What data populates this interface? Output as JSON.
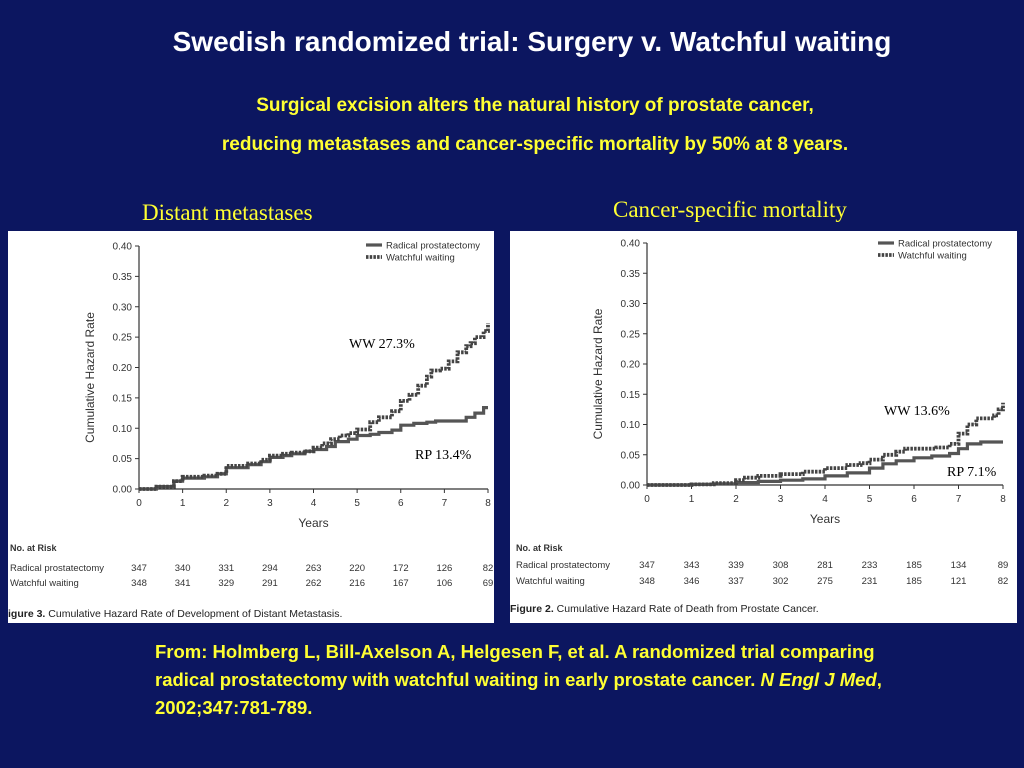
{
  "slide": {
    "title": "Swedish randomized trial: Surgery v. Watchful waiting",
    "subtitle_line1": "Surgical excision alters the natural history of prostate cancer,",
    "subtitle_line2": "reducing metastases and cancer-specific mortality by 50% at 8 years.",
    "citation_part1": "From:  Holmberg L, Bill-Axelson A, Helgesen F, et al. A randomized trial comparing radical prostatectomy with watchful waiting in early prostate cancer. ",
    "citation_journal": "N Engl J Med",
    "citation_part2": ", 2002;347:781-789."
  },
  "colors": {
    "background": "#0c1660",
    "title": "#ffffff",
    "highlight": "#ffff33",
    "line_rp": "#555555",
    "line_ww": "#444444"
  },
  "chart_data": [
    {
      "type": "line",
      "panel_label": "Distant metastases",
      "ylabel": "Cumulative Hazard Rate",
      "xlabel": "Years",
      "xlim": [
        0,
        8
      ],
      "ylim": [
        0,
        0.4
      ],
      "x_ticks": [
        "0",
        "1",
        "2",
        "3",
        "4",
        "5",
        "6",
        "7",
        "8"
      ],
      "y_ticks": [
        "0.00",
        "0.05",
        "0.10",
        "0.15",
        "0.20",
        "0.25",
        "0.30",
        "0.35",
        "0.40"
      ],
      "legend_position": "top-right",
      "series": [
        {
          "name": "Radical prostatectomy",
          "x": [
            0,
            0.4,
            0.8,
            1.0,
            1.5,
            1.8,
            2.0,
            2.5,
            2.8,
            3.0,
            3.3,
            3.5,
            3.8,
            4.0,
            4.3,
            4.5,
            4.8,
            5.0,
            5.3,
            5.5,
            5.8,
            6.0,
            6.3,
            6.6,
            6.8,
            7.2,
            7.5,
            7.7,
            7.9,
            8.0
          ],
          "y": [
            0,
            0.004,
            0.013,
            0.018,
            0.02,
            0.025,
            0.035,
            0.04,
            0.045,
            0.052,
            0.055,
            0.058,
            0.062,
            0.065,
            0.07,
            0.078,
            0.082,
            0.088,
            0.09,
            0.093,
            0.097,
            0.105,
            0.108,
            0.11,
            0.112,
            0.112,
            0.118,
            0.125,
            0.134,
            0.134
          ]
        },
        {
          "name": "Watchful waiting",
          "x": [
            0,
            0.4,
            0.8,
            1.0,
            1.5,
            1.8,
            2.0,
            2.5,
            2.8,
            3.0,
            3.3,
            3.5,
            3.8,
            4.0,
            4.2,
            4.4,
            4.6,
            4.8,
            5.0,
            5.3,
            5.5,
            5.8,
            6.0,
            6.2,
            6.4,
            6.6,
            6.7,
            6.9,
            7.1,
            7.3,
            7.5,
            7.6,
            7.7,
            7.9,
            8.0
          ],
          "y": [
            0,
            0.004,
            0.013,
            0.02,
            0.022,
            0.025,
            0.038,
            0.042,
            0.048,
            0.055,
            0.058,
            0.06,
            0.062,
            0.068,
            0.075,
            0.082,
            0.088,
            0.092,
            0.098,
            0.11,
            0.118,
            0.128,
            0.145,
            0.155,
            0.17,
            0.185,
            0.195,
            0.198,
            0.21,
            0.225,
            0.235,
            0.24,
            0.25,
            0.26,
            0.273
          ]
        }
      ],
      "annotations": [
        {
          "text": "WW 27.3%"
        },
        {
          "text": "RP 13.4%"
        }
      ],
      "at_risk": {
        "header": "No. at Risk",
        "rows": [
          {
            "label": "Radical prostatectomy",
            "values": [
              "347",
              "340",
              "331",
              "294",
              "263",
              "220",
              "172",
              "126",
              "82"
            ]
          },
          {
            "label": "Watchful waiting",
            "values": [
              "348",
              "341",
              "329",
              "291",
              "262",
              "216",
              "167",
              "106",
              "69"
            ]
          }
        ]
      },
      "caption_bold": "igure 3.",
      "caption_text": " Cumulative Hazard Rate of Development of Distant Metastasis."
    },
    {
      "type": "line",
      "panel_label": "Cancer-specific mortality",
      "ylabel": "Cumulative Hazard Rate",
      "xlabel": "Years",
      "xlim": [
        0,
        8
      ],
      "ylim": [
        0,
        0.4
      ],
      "x_ticks": [
        "0",
        "1",
        "2",
        "3",
        "4",
        "5",
        "6",
        "7",
        "8"
      ],
      "y_ticks": [
        "0.00",
        "0.05",
        "0.10",
        "0.15",
        "0.20",
        "0.25",
        "0.30",
        "0.35",
        "0.40"
      ],
      "legend_position": "top-right",
      "series": [
        {
          "name": "Radical prostatectomy",
          "x": [
            0,
            1.0,
            1.5,
            2.0,
            2.5,
            3.0,
            3.5,
            4.0,
            4.5,
            5.0,
            5.3,
            5.6,
            6.0,
            6.4,
            6.8,
            7.0,
            7.2,
            7.5,
            8.0
          ],
          "y": [
            0,
            0.001,
            0.002,
            0.004,
            0.006,
            0.008,
            0.01,
            0.015,
            0.02,
            0.028,
            0.035,
            0.04,
            0.045,
            0.048,
            0.052,
            0.06,
            0.068,
            0.071,
            0.071
          ]
        },
        {
          "name": "Watchful waiting",
          "x": [
            0,
            1.0,
            1.5,
            2.0,
            2.2,
            2.5,
            3.0,
            3.5,
            4.0,
            4.5,
            4.8,
            5.0,
            5.3,
            5.6,
            5.8,
            6.0,
            6.5,
            6.8,
            7.0,
            7.2,
            7.4,
            7.6,
            7.8,
            7.9,
            8.0
          ],
          "y": [
            0,
            0.001,
            0.003,
            0.008,
            0.012,
            0.015,
            0.018,
            0.022,
            0.028,
            0.033,
            0.036,
            0.042,
            0.05,
            0.055,
            0.06,
            0.06,
            0.062,
            0.068,
            0.085,
            0.1,
            0.11,
            0.11,
            0.115,
            0.125,
            0.136
          ]
        }
      ],
      "annotations": [
        {
          "text": "WW 13.6%"
        },
        {
          "text": "RP 7.1%"
        }
      ],
      "at_risk": {
        "header": "No. at Risk",
        "rows": [
          {
            "label": "Radical prostatectomy",
            "values": [
              "347",
              "343",
              "339",
              "308",
              "281",
              "233",
              "185",
              "134",
              "89"
            ]
          },
          {
            "label": "Watchful waiting",
            "values": [
              "348",
              "346",
              "337",
              "302",
              "275",
              "231",
              "185",
              "121",
              "82"
            ]
          }
        ]
      },
      "caption_bold": "Figure 2.",
      "caption_text": " Cumulative Hazard Rate of Death from Prostate Cancer."
    }
  ]
}
